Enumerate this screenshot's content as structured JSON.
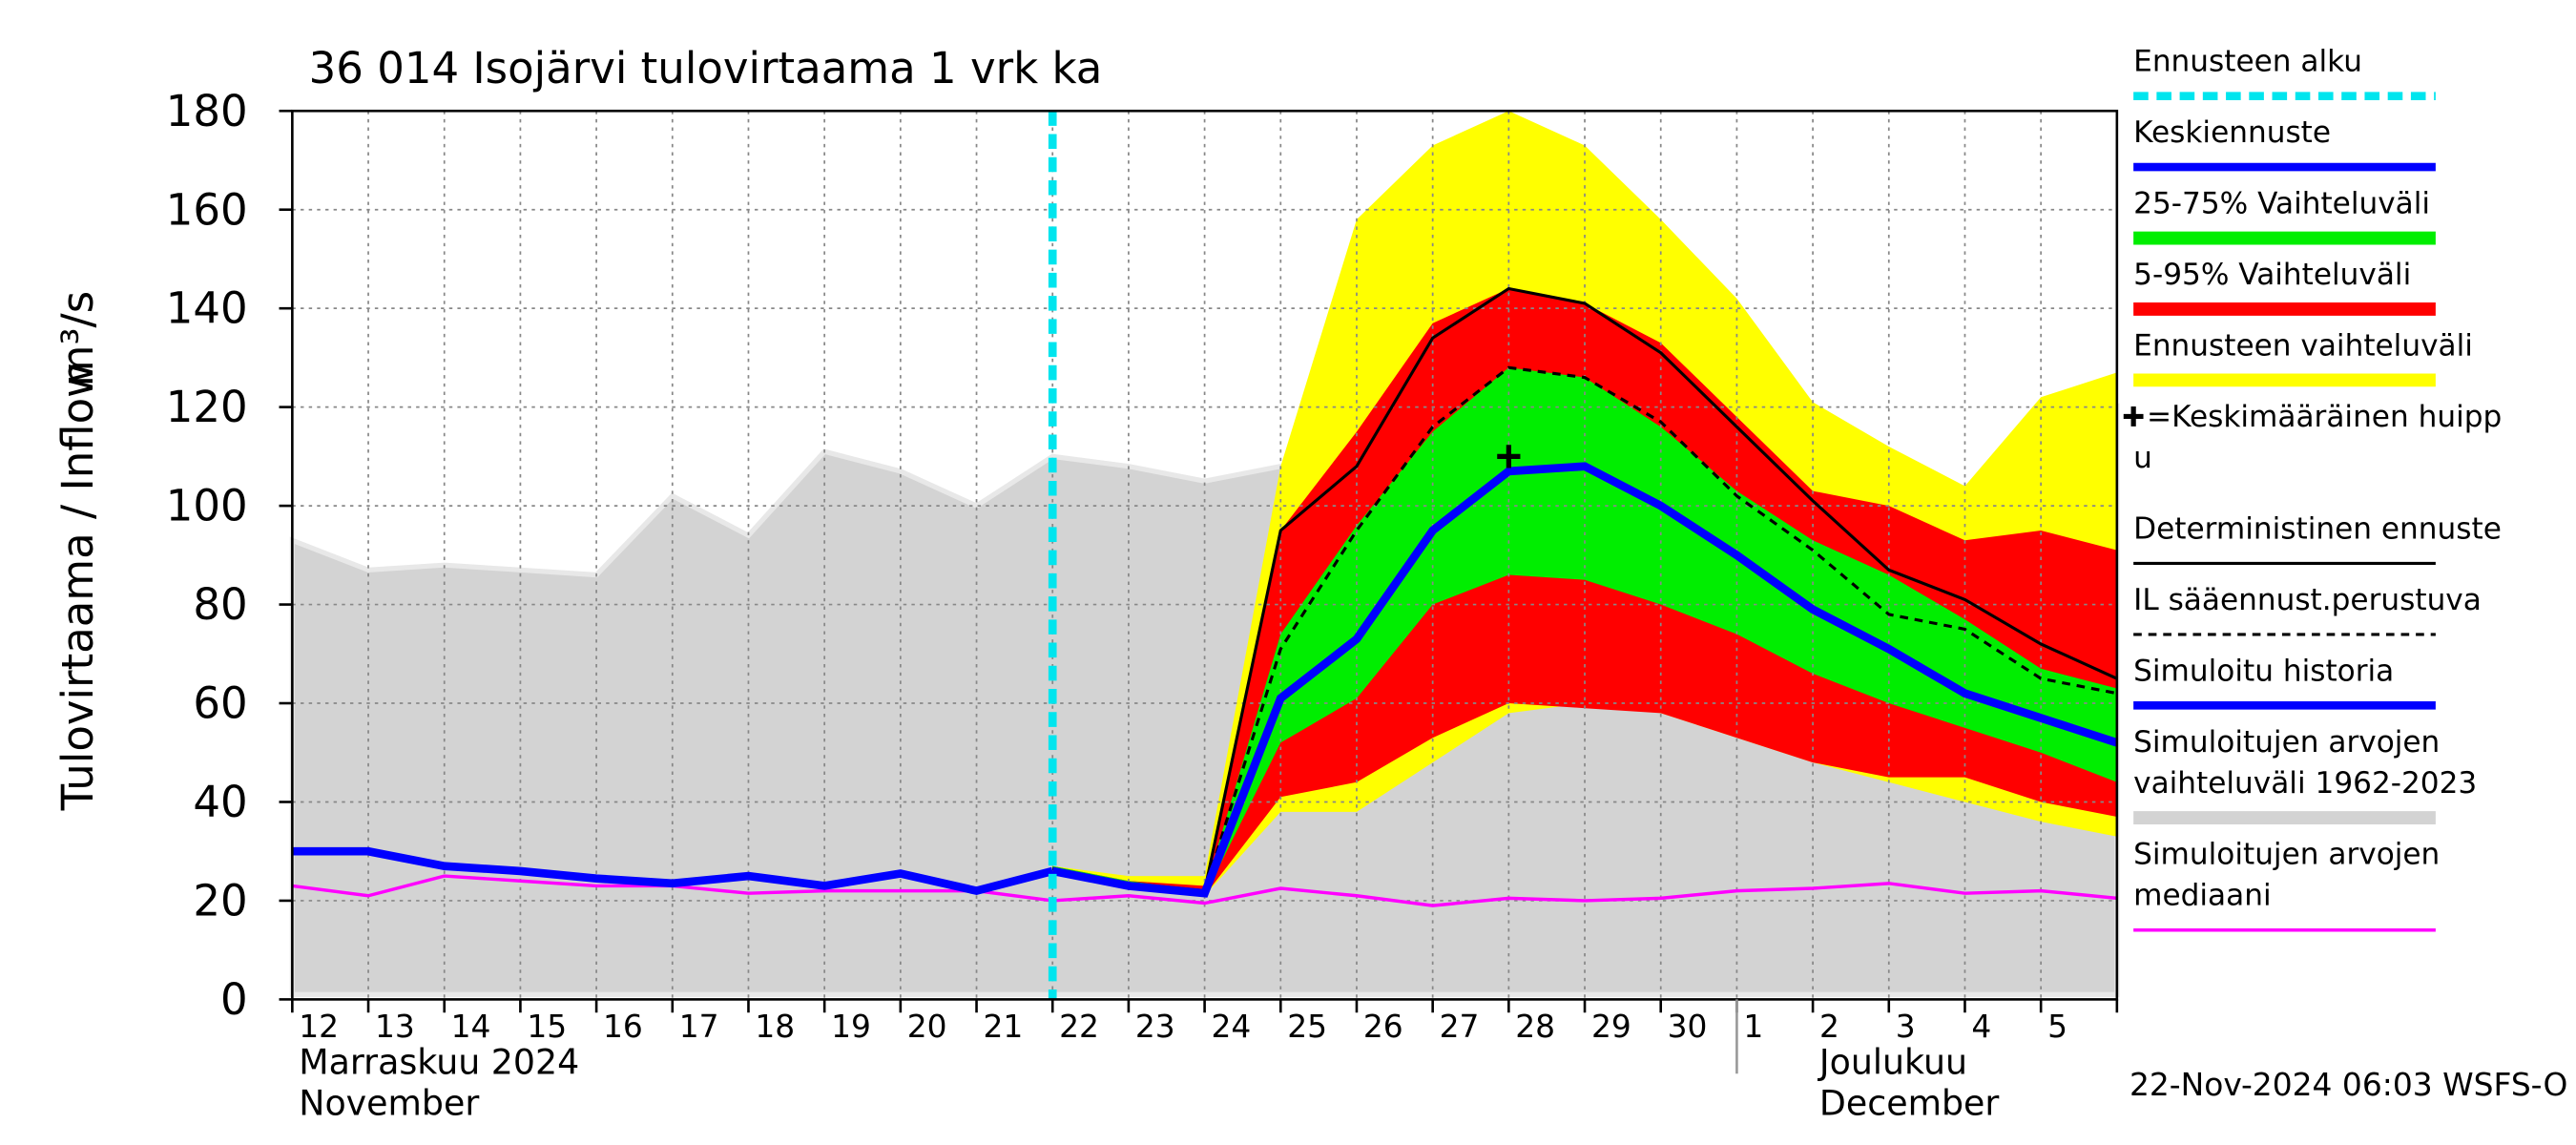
{
  "chart_data": {
    "type": "hydrograph",
    "title": "36 014 Isojärvi tulovirtaama 1 vrk ka",
    "y_label": "Tulovirtaama / Inflow",
    "y_unit": "m³/s",
    "categories": [
      "12",
      "13",
      "14",
      "15",
      "16",
      "17",
      "18",
      "19",
      "20",
      "21",
      "22",
      "23",
      "24",
      "25",
      "26",
      "27",
      "28",
      "29",
      "30",
      "1",
      "2",
      "3",
      "4",
      "5",
      null
    ],
    "month_labels": [
      {
        "index": 0,
        "lines": [
          "Marraskuu 2024",
          "November"
        ]
      },
      {
        "index": 19,
        "lines": [
          "Joulukuu",
          "December"
        ]
      }
    ],
    "ylim": [
      0,
      180
    ],
    "yticks": [
      0,
      20,
      40,
      60,
      80,
      100,
      120,
      140,
      160,
      180
    ],
    "grid": true,
    "series": [
      {
        "name": [
          "Simuloitujen arvojen",
          "vaihteluväli 1962-2023"
        ],
        "kind": "band",
        "color": "#d3d3d3",
        "values": [
          93,
          87,
          88,
          87,
          86,
          102,
          94,
          111,
          107,
          100,
          110,
          108,
          105,
          108,
          112,
          113,
          128,
          130,
          123,
          112,
          104,
          88,
          100,
          112,
          120
        ],
        "lower": [
          1,
          1,
          1,
          1,
          1,
          1,
          1,
          1,
          1,
          1,
          1,
          1,
          1,
          1,
          1,
          1,
          1,
          1,
          1,
          1,
          1,
          1,
          1,
          1,
          1
        ]
      },
      {
        "name": [
          "Ennusteen vaihteluväli"
        ],
        "kind": "band",
        "color": "#ffff00",
        "values": [
          null,
          null,
          null,
          null,
          null,
          null,
          null,
          null,
          null,
          null,
          27,
          25,
          25,
          108,
          158,
          173,
          180,
          173,
          158,
          142,
          121,
          112,
          104,
          122,
          127
        ],
        "lower": [
          null,
          null,
          null,
          null,
          null,
          null,
          null,
          null,
          null,
          null,
          26,
          23,
          21,
          38,
          38,
          48,
          58,
          60,
          58,
          53,
          48,
          44,
          40,
          36,
          33
        ]
      },
      {
        "name": [
          "5-95% Vaihteluväli"
        ],
        "kind": "band",
        "color": "#ff0000",
        "values": [
          null,
          null,
          null,
          null,
          null,
          null,
          null,
          null,
          null,
          null,
          27,
          24,
          23,
          95,
          115,
          137,
          144,
          141,
          133,
          118,
          103,
          100,
          93,
          95,
          91
        ],
        "lower": [
          null,
          null,
          null,
          null,
          null,
          null,
          null,
          null,
          null,
          null,
          26,
          23,
          21,
          41,
          44,
          53,
          60,
          59,
          58,
          53,
          48,
          45,
          45,
          40,
          37
        ]
      },
      {
        "name": [
          "25-75% Vaihteluväli"
        ],
        "kind": "band",
        "color": "#00ee00",
        "values": [
          null,
          null,
          null,
          null,
          null,
          null,
          null,
          null,
          null,
          null,
          27,
          24,
          22,
          74,
          96,
          115,
          128,
          126,
          116,
          103,
          93,
          86,
          77,
          67,
          63
        ],
        "lower": [
          null,
          null,
          null,
          null,
          null,
          null,
          null,
          null,
          null,
          null,
          26,
          23,
          21,
          52,
          61,
          80,
          86,
          85,
          80,
          74,
          66,
          60,
          55,
          50,
          44
        ]
      },
      {
        "name": [
          "Simuloitujen arvojen",
          "mediaani"
        ],
        "kind": "line",
        "color": "#ff00ff",
        "width": 2,
        "values": [
          23,
          21,
          25,
          24,
          23,
          23,
          21.5,
          22,
          22,
          22,
          20,
          21,
          19.5,
          22.5,
          21,
          19,
          20.5,
          20,
          20.5,
          22,
          22.5,
          23.5,
          21.5,
          22,
          20.5
        ]
      },
      {
        "name": [
          "IL sääennust.perustuva"
        ],
        "kind": "line",
        "color": "#000000",
        "width": 1.8,
        "dash": true,
        "values": [
          null,
          null,
          null,
          null,
          null,
          null,
          null,
          null,
          null,
          null,
          26.5,
          23,
          22,
          71,
          95,
          116,
          128,
          126,
          117,
          102,
          91,
          78,
          75,
          65,
          62
        ]
      },
      {
        "name": [
          "Deterministinen ennuste"
        ],
        "kind": "line",
        "color": "#000000",
        "width": 1.8,
        "values": [
          null,
          null,
          null,
          null,
          null,
          null,
          null,
          null,
          null,
          null,
          26.5,
          23.5,
          22,
          95,
          108,
          134,
          144,
          141,
          131,
          116,
          101,
          87,
          81,
          72,
          65
        ]
      },
      {
        "name": [
          "Simuloitu historia"
        ],
        "kind": "line",
        "color": "#0000ff",
        "width": 5,
        "values": [
          30,
          30,
          27,
          26,
          24.5,
          23.5,
          25,
          23,
          25.5,
          22,
          26,
          null,
          null,
          null,
          null,
          null,
          null,
          null,
          null,
          null,
          null,
          null,
          null,
          null,
          null
        ]
      },
      {
        "name": [
          "Keskiennuste"
        ],
        "kind": "line",
        "color": "#0000ff",
        "width": 5,
        "values": [
          null,
          null,
          null,
          null,
          null,
          null,
          null,
          null,
          null,
          null,
          26,
          23,
          21.5,
          61,
          73,
          95,
          107,
          108,
          100,
          90,
          79,
          71,
          62,
          57,
          52
        ]
      }
    ],
    "forecast_start": {
      "name": [
        "Ennusteen alku"
      ],
      "index": 10,
      "color": "#00e5ee"
    },
    "peak": {
      "name": [
        "=Keskimääräinen huipp",
        "u"
      ],
      "index": 16,
      "value": 110
    },
    "legend_order": [
      "forecast_start",
      8,
      3,
      2,
      1,
      "peak",
      6,
      5,
      7,
      0,
      4
    ],
    "timestamp": "22-Nov-2024 06:03 WSFS-O"
  }
}
